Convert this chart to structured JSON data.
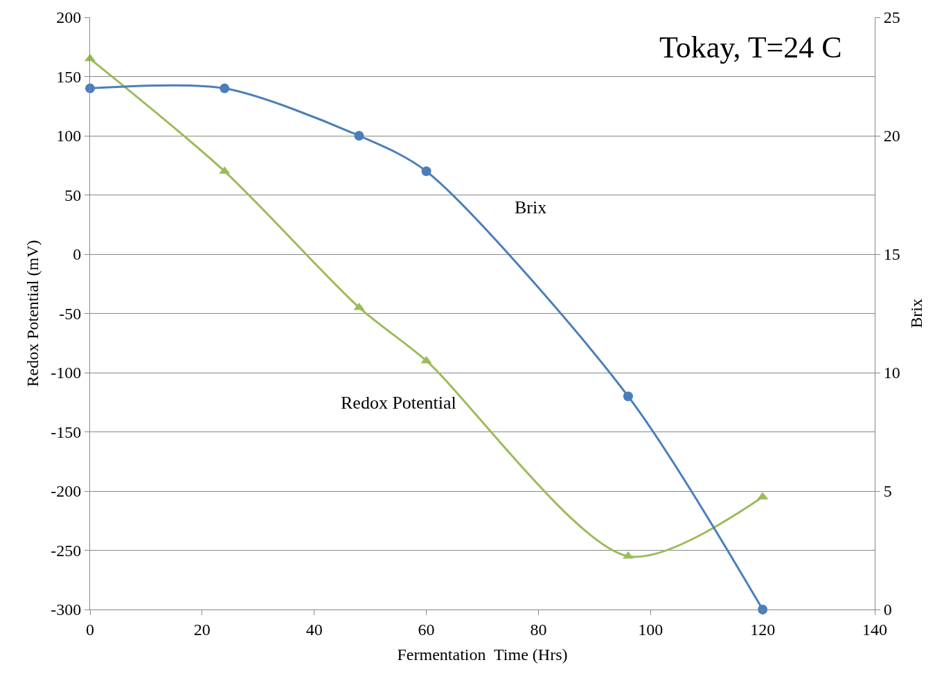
{
  "chart_data": {
    "type": "line",
    "title": "Tokay, T=24 C",
    "xlabel": "Fermentation  Time (Hrs)",
    "ylabel": "Redox Potential (mV)",
    "y2label": "Brix",
    "x": [
      0,
      24,
      48,
      60,
      96,
      120
    ],
    "series": [
      {
        "name": "Brix",
        "color": "#4a7ebb",
        "axis": "y2",
        "marker": "circle",
        "values": [
          22,
          22,
          20,
          18.5,
          9,
          0
        ]
      },
      {
        "name": "Redox Potential",
        "color": "#9bbb59",
        "marker": "triangle",
        "values": [
          165,
          70,
          -45,
          -90,
          -255,
          -205
        ]
      }
    ],
    "xlim": [
      0,
      140
    ],
    "xticks": [
      0,
      20,
      40,
      60,
      80,
      100,
      120,
      140
    ],
    "ylim": [
      -300,
      200
    ],
    "yticks": [
      -300,
      -250,
      -200,
      -150,
      -100,
      -50,
      0,
      50,
      100,
      150,
      200
    ],
    "y2lim": [
      0,
      25
    ],
    "y2ticks": [
      0,
      5,
      10,
      15,
      20,
      25
    ],
    "grid": "y",
    "legend": false,
    "line_style": "solid"
  }
}
